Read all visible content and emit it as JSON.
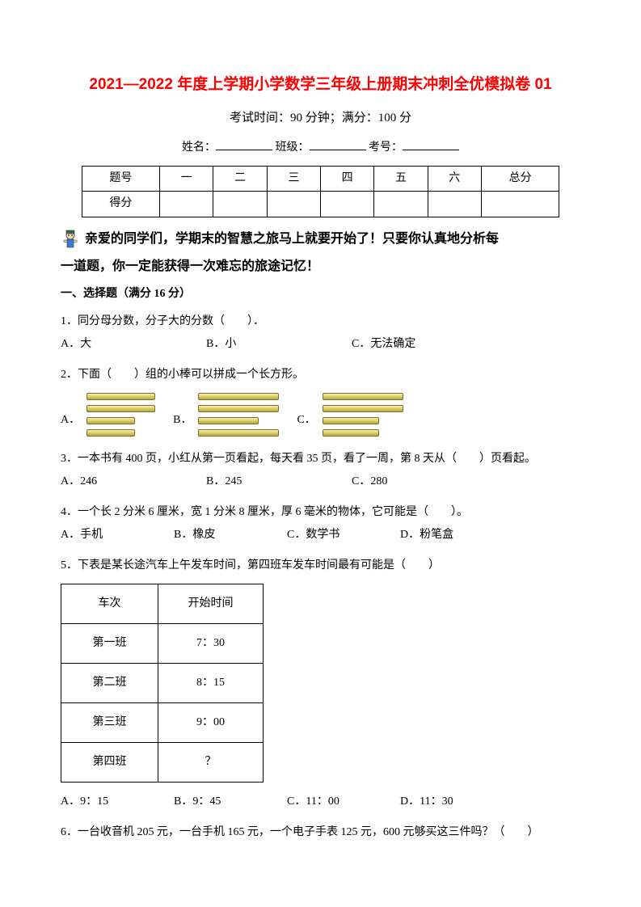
{
  "title": "2021—2022 年度上学期小学数学三年级上册期末冲刺全优模拟卷 01",
  "exam_info": "考试时间：90 分钟；满分：100 分",
  "student": {
    "name_label": "姓名：",
    "class_label": "班级：",
    "id_label": "考号："
  },
  "score_table": {
    "headers": [
      "题号",
      "一",
      "二",
      "三",
      "四",
      "五",
      "六",
      "总分"
    ],
    "row_label": "得分"
  },
  "intro_line1": "亲爱的同学们，学期末的智慧之旅马上就要开始了！只要你认真地分析每",
  "intro_line2": "一道题，你一定能获得一次难忘的旅途记忆！",
  "section1_title": "一、选择题（满分 16 分）",
  "q1": {
    "text": "1．同分母分数，分子大的分数（　　）．",
    "a": "A．大",
    "b": "B．小",
    "c": "C．无法确定"
  },
  "q2": {
    "text": "2．下面（　　）组的小棒可以拼成一个长方形。",
    "a": "A．",
    "b": "B．",
    "c": "C．",
    "sticks": {
      "group_a": [
        85,
        85,
        60,
        60
      ],
      "group_b": [
        100,
        100,
        75,
        100
      ],
      "group_c": [
        100,
        100,
        70,
        70
      ]
    }
  },
  "q3": {
    "text": "3．一本书有 400 页，小红从第一页看起，每天看 35 页，看了一周，第 8 天从（　　）页看起。",
    "a": "A．246",
    "b": "B．245",
    "c": "C．280"
  },
  "q4": {
    "text": "4．一个长 2 分米 6 厘米，宽 1 分米 8 厘米，厚 6 毫米的物体，它可能是（　　）。",
    "a": "A．手机",
    "b": "B．橡皮",
    "c": "C．数学书",
    "d": "D．粉笔盒"
  },
  "q5": {
    "text": "5．下表是某长途汽车上午发车时间，第四班车发车时间最有可能是（　　）",
    "table": {
      "h1": "车次",
      "h2": "开始时间",
      "rows": [
        [
          "第一班",
          "7：30"
        ],
        [
          "第二班",
          "8：15"
        ],
        [
          "第三班",
          "9：00"
        ],
        [
          "第四班",
          "？"
        ]
      ]
    },
    "a": "A．9：15",
    "b": "B．9：45",
    "c": "C．11：00",
    "d": "D．11：30"
  },
  "q6": {
    "text": "6．一台收音机 205 元，一台手机 165 元，一个电子手表 125 元，600 元够买这三件吗？（　　）"
  }
}
